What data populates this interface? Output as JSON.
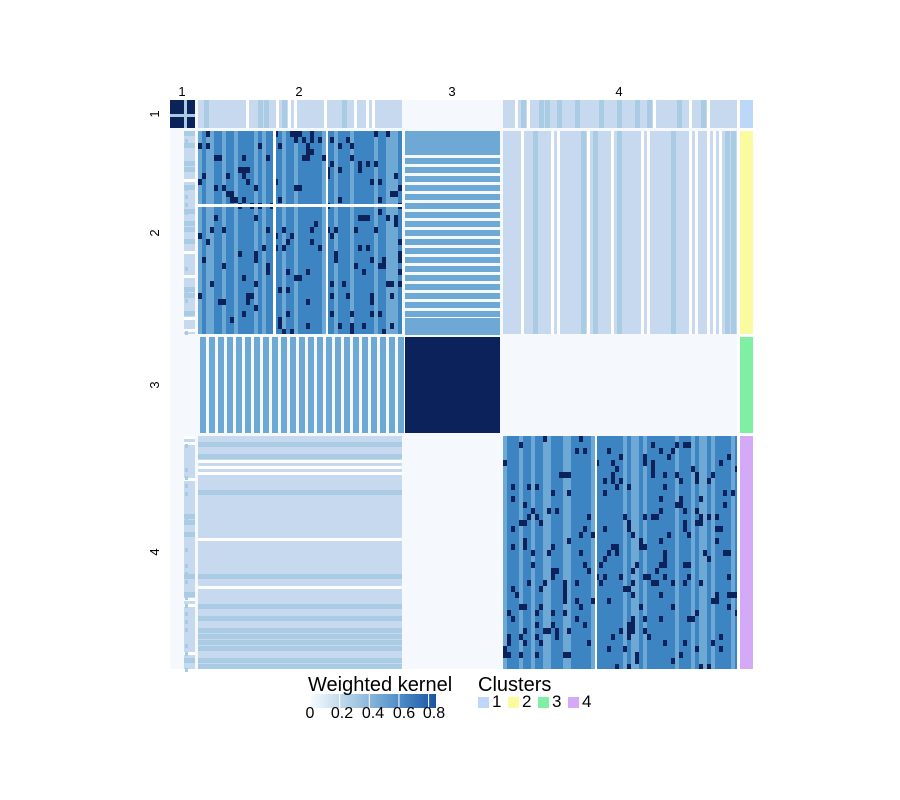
{
  "chart_data": {
    "type": "heatmap",
    "column_group_labels": [
      "1",
      "2",
      "3",
      "4"
    ],
    "row_group_labels": [
      "1",
      "2",
      "3",
      "4"
    ],
    "colorbar": {
      "title": "Weighted kernel",
      "ticks": [
        "0",
        "0.2",
        "0.4",
        "0.6",
        "0.8"
      ],
      "range": [
        0,
        0.85
      ]
    },
    "cluster_legend": {
      "title": "Clusters",
      "items": [
        {
          "label": "1",
          "color": "#bcd7f7"
        },
        {
          "label": "2",
          "color": "#fafb9e"
        },
        {
          "label": "3",
          "color": "#7ff0a3"
        },
        {
          "label": "4",
          "color": "#d4aaf7"
        }
      ]
    },
    "block_values": {
      "rows": [
        "1",
        "2",
        "3",
        "4"
      ],
      "cols": [
        "1",
        "2",
        "3",
        "4"
      ],
      "values": [
        [
          0.85,
          0.35,
          0.0,
          0.3
        ],
        [
          0.35,
          0.6,
          0.45,
          0.3
        ],
        [
          0.0,
          0.45,
          0.85,
          0.0
        ],
        [
          0.3,
          0.3,
          0.0,
          0.6
        ]
      ]
    },
    "colors": {
      "background": "#f5f9fe",
      "very_light": "#c7d9ee",
      "light": "#a9cbe4",
      "mid": "#6ea8d4",
      "dark": "#3d84c3",
      "darkest": "#0c225b"
    }
  }
}
